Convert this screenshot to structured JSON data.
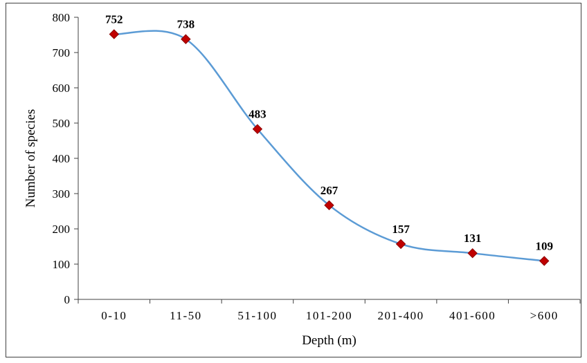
{
  "chart_data": {
    "type": "line",
    "categories": [
      "0-10",
      "11-50",
      "51-100",
      "101-200",
      "201-400",
      "401-600",
      ">600"
    ],
    "values": [
      752,
      738,
      483,
      267,
      157,
      131,
      109
    ],
    "data_labels": [
      "752",
      "738",
      "483",
      "267",
      "157",
      "131",
      "109"
    ],
    "title": "",
    "xlabel": "Depth (m)",
    "ylabel": "Number of species",
    "ylim": [
      0,
      800
    ],
    "yticks": [
      0,
      100,
      200,
      300,
      400,
      500,
      600,
      700,
      800
    ],
    "ytick_labels": [
      "0",
      "100",
      "200",
      "300",
      "400",
      "500",
      "600",
      "700",
      "800"
    ],
    "grid": false,
    "smooth": true,
    "line_color": "#5b9bd5",
    "marker": "diamond",
    "marker_color": "#c00000"
  }
}
